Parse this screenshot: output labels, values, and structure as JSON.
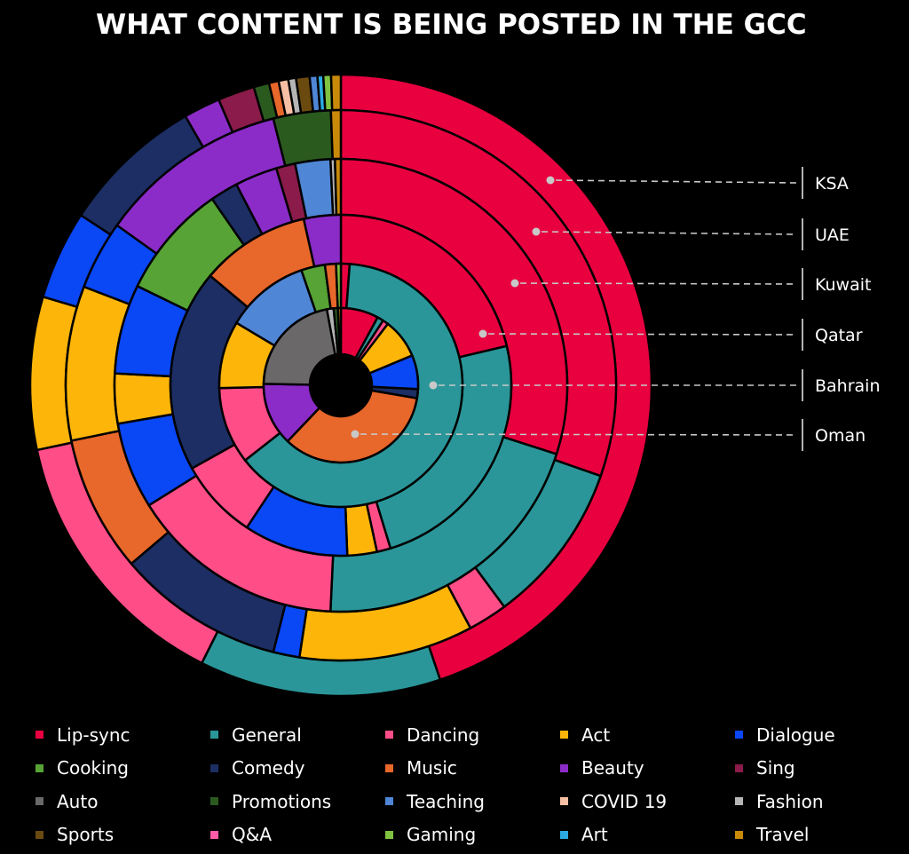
{
  "chart_data": {
    "type": "pie",
    "subtype": "multi-ring donut",
    "title": "WHAT CONTENT IS BEING POSTED IN THE GCC",
    "legend_placement": "bottom",
    "categories": [
      {
        "name": "Lip-sync",
        "color": "#E8003F"
      },
      {
        "name": "General",
        "color": "#2A9699"
      },
      {
        "name": "Dancing",
        "color": "#FF4D88"
      },
      {
        "name": "Act",
        "color": "#FDB50A"
      },
      {
        "name": "Dialogue",
        "color": "#0A47F5"
      },
      {
        "name": "Cooking",
        "color": "#57A336"
      },
      {
        "name": "Comedy",
        "color": "#1C2E63"
      },
      {
        "name": "Music",
        "color": "#E8672A"
      },
      {
        "name": "Beauty",
        "color": "#8B2CC9"
      },
      {
        "name": "Sing",
        "color": "#8A1B4A"
      },
      {
        "name": "Auto",
        "color": "#6A6868"
      },
      {
        "name": "Promotions",
        "color": "#2B5A1F"
      },
      {
        "name": "Teaching",
        "color": "#4F86D6"
      },
      {
        "name": "COVID 19",
        "color": "#F7BFA4"
      },
      {
        "name": "Fashion",
        "color": "#B5B5B5"
      },
      {
        "name": "Sports",
        "color": "#6B4A10"
      },
      {
        "name": "Q&A",
        "color": "#FF5BA8"
      },
      {
        "name": "Gaming",
        "color": "#7FC240"
      },
      {
        "name": "Art",
        "color": "#2CA9E1"
      },
      {
        "name": "Travel",
        "color": "#C98A0A"
      }
    ],
    "series": [
      {
        "name": "KSA",
        "values": [
          {
            "category": "Lip-sync",
            "value": 44.6
          },
          {
            "category": "General",
            "value": 12.5
          },
          {
            "category": "Dancing",
            "value": 14.2
          },
          {
            "category": "Act",
            "value": 7.9
          },
          {
            "category": "Dialogue",
            "value": 4.6
          },
          {
            "category": "Comedy",
            "value": 7.4
          },
          {
            "category": "Beauty",
            "value": 1.9
          },
          {
            "category": "Sing",
            "value": 1.9
          },
          {
            "category": "Promotions",
            "value": 0.8
          },
          {
            "category": "Music",
            "value": 0.5
          },
          {
            "category": "COVID 19",
            "value": 0.5
          },
          {
            "category": "Fashion",
            "value": 0.4
          },
          {
            "category": "Sports",
            "value": 0.7
          },
          {
            "category": "Teaching",
            "value": 0.4
          },
          {
            "category": "Art",
            "value": 0.3
          },
          {
            "category": "Gaming",
            "value": 0.4
          },
          {
            "category": "Travel",
            "value": 0.5
          }
        ]
      },
      {
        "name": "UAE",
        "values": [
          {
            "category": "Lip-sync",
            "value": 31.5
          },
          {
            "category": "General",
            "value": 9.9
          },
          {
            "category": "Dancing",
            "value": 2.4
          },
          {
            "category": "Act",
            "value": 10.6
          },
          {
            "category": "Dialogue",
            "value": 1.6
          },
          {
            "category": "Comedy",
            "value": 10.2
          },
          {
            "category": "Music",
            "value": 8.3
          },
          {
            "category": "Act",
            "value": 9.4
          },
          {
            "category": "Dialogue",
            "value": 4.2
          },
          {
            "category": "Beauty",
            "value": 11.6
          },
          {
            "category": "Promotions",
            "value": 3.5
          },
          {
            "category": "Travel",
            "value": 0.6
          }
        ]
      },
      {
        "name": "Kuwait",
        "values": [
          {
            "category": "Lip-sync",
            "value": 28.6
          },
          {
            "category": "General",
            "value": 19.9
          },
          {
            "category": "Dancing",
            "value": 14.7
          },
          {
            "category": "Dialogue",
            "value": 5.9
          },
          {
            "category": "Act",
            "value": 3.4
          },
          {
            "category": "Dialogue",
            "value": 6.1
          },
          {
            "category": "Cooking",
            "value": 7.8
          },
          {
            "category": "Comedy",
            "value": 1.9
          },
          {
            "category": "Beauty",
            "value": 2.9
          },
          {
            "category": "Sing",
            "value": 1.3
          },
          {
            "category": "Teaching",
            "value": 2.4
          },
          {
            "category": "Fashion",
            "value": 0.3
          },
          {
            "category": "Travel",
            "value": 0.4
          }
        ]
      },
      {
        "name": "Qatar",
        "values": [
          {
            "category": "Lip-sync",
            "value": 21.3
          },
          {
            "category": "General",
            "value": 24.0
          },
          {
            "category": "Dancing",
            "value": 1.3
          },
          {
            "category": "Act",
            "value": 2.8
          },
          {
            "category": "Dialogue",
            "value": 9.9
          },
          {
            "category": "Dancing",
            "value": 7.6
          },
          {
            "category": "Comedy",
            "value": 19.2
          },
          {
            "category": "Music",
            "value": 10.4
          },
          {
            "category": "Beauty",
            "value": 3.5
          }
        ]
      },
      {
        "name": "Bahrain",
        "values": [
          {
            "category": "Lip-sync",
            "value": 1.1
          },
          {
            "category": "General",
            "value": 60.1
          },
          {
            "category": "Dancing",
            "value": 9.7
          },
          {
            "category": "Act",
            "value": 8.5
          },
          {
            "category": "Teaching",
            "value": 10.6
          },
          {
            "category": "Cooking",
            "value": 3.0
          },
          {
            "category": "Music",
            "value": 1.4
          },
          {
            "category": "Gaming",
            "value": 0.6
          }
        ]
      },
      {
        "name": "Oman",
        "values": [
          {
            "category": "Lip-sync",
            "value": 7.9
          },
          {
            "category": "General",
            "value": 1.3
          },
          {
            "category": "Dancing",
            "value": 1.2
          },
          {
            "category": "Act",
            "value": 8.3
          },
          {
            "category": "Dialogue",
            "value": 7.1
          },
          {
            "category": "Comedy",
            "value": 1.9
          },
          {
            "category": "Music",
            "value": 34.4
          },
          {
            "category": "Beauty",
            "value": 13.2
          },
          {
            "category": "Auto",
            "value": 21.8
          },
          {
            "category": "Fashion",
            "value": 1.4
          },
          {
            "category": "Promotions",
            "value": 0.9
          },
          {
            "category": "Travel",
            "value": 0.6
          }
        ]
      }
    ]
  }
}
